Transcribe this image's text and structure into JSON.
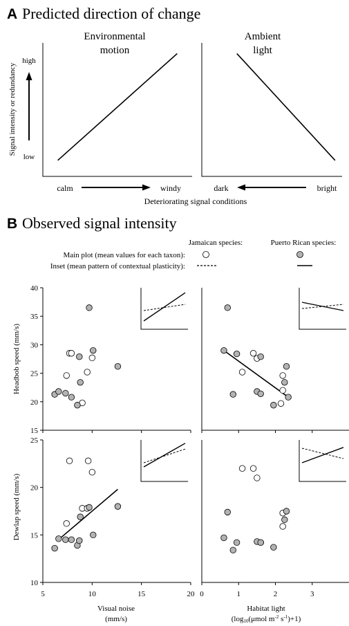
{
  "colors": {
    "jamaican_fill": "#ffffff",
    "puerto_rican_fill": "#b3b3b3",
    "stroke": "#000000"
  },
  "panel_a": {
    "letter": "A",
    "title": "Predicted direction of change",
    "ylabel": "Signal intensity or redundancy",
    "high": "high",
    "low": "low",
    "xlabel": "Deteriorating signal conditions",
    "left": {
      "title_line1": "Environmental",
      "title_line2": "motion",
      "x_start": "calm",
      "x_end": "windy"
    },
    "right": {
      "title_line1": "Ambient",
      "title_line2": "light",
      "x_start": "dark",
      "x_end": "bright"
    }
  },
  "panel_b": {
    "letter": "B",
    "title": "Observed signal intensity",
    "legend": {
      "jamaican": "Jamaican species:",
      "puerto_rican": "Puerto Rican species:",
      "main_plot": "Main plot (mean values for each taxon):",
      "inset": "Inset (mean pattern of contextual plasticity):"
    }
  },
  "chart_data": [
    {
      "type": "line",
      "title": "Environmental motion",
      "xlabel": "Deteriorating signal conditions",
      "ylabel": "Signal intensity or redundancy",
      "x_ticks": [
        "calm",
        "windy"
      ],
      "y_ticks": [
        "low",
        "high"
      ],
      "series": [
        {
          "values": [
            [
              0.1,
              0.12
            ],
            [
              0.9,
              0.92
            ]
          ]
        }
      ]
    },
    {
      "type": "line",
      "title": "Ambient light",
      "xlabel": "Deteriorating signal conditions",
      "x_ticks": [
        "dark",
        "bright"
      ],
      "series": [
        {
          "values": [
            [
              0.25,
              0.92
            ],
            [
              0.95,
              0.12
            ]
          ]
        }
      ]
    },
    {
      "type": "scatter",
      "xlabel": "",
      "ylabel": "Headbob speed (mm/s)",
      "xlim": [
        5,
        20
      ],
      "ylim": [
        15,
        40
      ],
      "x_ticks": [
        5,
        10,
        15,
        20
      ],
      "y_ticks": [
        15,
        20,
        25,
        30,
        35,
        40
      ],
      "series": [
        {
          "name": "Jamaican species",
          "points": [
            [
              7.4,
              24.6
            ],
            [
              7.7,
              28.5
            ],
            [
              7.9,
              28.5
            ],
            [
              9.0,
              19.8
            ],
            [
              9.5,
              25.2
            ],
            [
              10.0,
              27.7
            ]
          ]
        },
        {
          "name": "Puerto Rican species",
          "points": [
            [
              6.2,
              21.3
            ],
            [
              6.6,
              21.8
            ],
            [
              7.3,
              21.5
            ],
            [
              7.9,
              20.8
            ],
            [
              8.5,
              19.4
            ],
            [
              8.7,
              27.9
            ],
            [
              8.8,
              23.4
            ],
            [
              9.7,
              36.5
            ],
            [
              10.1,
              29.0
            ],
            [
              12.6,
              26.2
            ]
          ]
        }
      ],
      "inset": {
        "dashed": [
          [
            0,
            0.45
          ],
          [
            1,
            0.6
          ]
        ],
        "solid": [
          [
            0,
            0.2
          ],
          [
            1,
            0.88
          ]
        ]
      }
    },
    {
      "type": "scatter",
      "xlabel": "",
      "ylabel": "",
      "xlim": [
        0,
        4
      ],
      "ylim": [
        15,
        40
      ],
      "x_ticks": [
        0,
        1,
        2,
        3
      ],
      "series": [
        {
          "name": "Jamaican species",
          "points": [
            [
              1.1,
              25.2
            ],
            [
              1.4,
              28.5
            ],
            [
              1.5,
              27.6
            ],
            [
              2.15,
              19.7
            ],
            [
              2.2,
              24.6
            ],
            [
              2.2,
              22.0
            ]
          ]
        },
        {
          "name": "Puerto Rican species",
          "points": [
            [
              0.6,
              29.0
            ],
            [
              0.7,
              36.5
            ],
            [
              0.85,
              21.3
            ],
            [
              0.95,
              28.4
            ],
            [
              1.5,
              21.8
            ],
            [
              1.6,
              21.4
            ],
            [
              1.6,
              27.9
            ],
            [
              1.95,
              19.4
            ],
            [
              2.25,
              23.4
            ],
            [
              2.3,
              26.2
            ],
            [
              2.35,
              20.8
            ]
          ]
        }
      ],
      "fit_line": [
        [
          0.6,
          29.0
        ],
        [
          2.35,
          20.8
        ]
      ],
      "inset": {
        "dashed": [
          [
            0,
            0.5
          ],
          [
            1,
            0.6
          ]
        ],
        "solid": [
          [
            0,
            0.65
          ],
          [
            1,
            0.45
          ]
        ]
      }
    },
    {
      "type": "scatter",
      "xlabel": "Visual noise",
      "xlabel_unit": "(mm/s)",
      "ylabel": "Dewlap speed (mm/s)",
      "xlim": [
        5,
        20
      ],
      "ylim": [
        10,
        25
      ],
      "x_ticks": [
        5,
        10,
        15,
        20
      ],
      "y_ticks": [
        10,
        15,
        20,
        25
      ],
      "series": [
        {
          "name": "Jamaican species",
          "points": [
            [
              7.4,
              16.2
            ],
            [
              7.7,
              22.8
            ],
            [
              9.0,
              17.8
            ],
            [
              9.5,
              17.8
            ],
            [
              9.6,
              22.8
            ],
            [
              10.0,
              21.6
            ]
          ]
        },
        {
          "name": "Puerto Rican species",
          "points": [
            [
              6.2,
              13.6
            ],
            [
              6.6,
              14.6
            ],
            [
              7.3,
              14.5
            ],
            [
              7.9,
              14.5
            ],
            [
              8.5,
              13.9
            ],
            [
              8.7,
              14.4
            ],
            [
              8.8,
              16.9
            ],
            [
              9.7,
              17.9
            ],
            [
              10.1,
              15.0
            ],
            [
              12.6,
              18.0
            ]
          ]
        }
      ],
      "fit_line": [
        [
          6.7,
          14.6
        ],
        [
          12.6,
          19.8
        ]
      ],
      "inset": {
        "dashed": [
          [
            0,
            0.45
          ],
          [
            1,
            0.78
          ]
        ],
        "solid": [
          [
            0,
            0.35
          ],
          [
            1,
            0.92
          ]
        ]
      }
    },
    {
      "type": "scatter",
      "xlabel": "Habitat light",
      "xlabel_unit": "(log10(μmol m⁻² s⁻¹)+1)",
      "ylabel": "",
      "xlim": [
        0,
        4
      ],
      "ylim": [
        10,
        25
      ],
      "x_ticks": [
        0,
        1,
        2,
        3
      ],
      "series": [
        {
          "name": "Jamaican species",
          "points": [
            [
              1.1,
              22.0
            ],
            [
              1.4,
              22.0
            ],
            [
              1.5,
              21.0
            ],
            [
              1.6,
              14.2
            ],
            [
              2.2,
              17.3
            ],
            [
              2.2,
              15.9
            ]
          ]
        },
        {
          "name": "Puerto Rican species",
          "points": [
            [
              0.6,
              14.7
            ],
            [
              0.7,
              17.4
            ],
            [
              0.85,
              13.4
            ],
            [
              0.95,
              14.2
            ],
            [
              1.5,
              14.3
            ],
            [
              1.6,
              14.2
            ],
            [
              1.95,
              13.7
            ],
            [
              2.25,
              16.6
            ],
            [
              2.3,
              17.5
            ]
          ]
        }
      ],
      "inset": {
        "dashed": [
          [
            0,
            0.8
          ],
          [
            1,
            0.55
          ]
        ],
        "solid": [
          [
            0,
            0.45
          ],
          [
            1,
            0.82
          ]
        ]
      }
    }
  ]
}
